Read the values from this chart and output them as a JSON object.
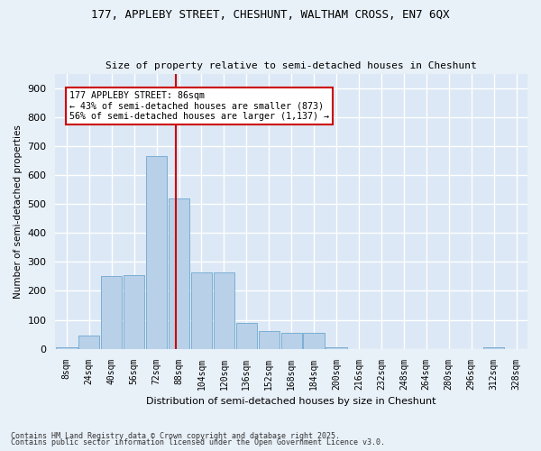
{
  "title1": "177, APPLEBY STREET, CHESHUNT, WALTHAM CROSS, EN7 6QX",
  "title2": "Size of property relative to semi-detached houses in Cheshunt",
  "xlabel": "Distribution of semi-detached houses by size in Cheshunt",
  "ylabel": "Number of semi-detached properties",
  "bins": [
    "8sqm",
    "24sqm",
    "40sqm",
    "56sqm",
    "72sqm",
    "88sqm",
    "104sqm",
    "120sqm",
    "136sqm",
    "152sqm",
    "168sqm",
    "184sqm",
    "200sqm",
    "216sqm",
    "232sqm",
    "248sqm",
    "264sqm",
    "280sqm",
    "296sqm",
    "312sqm",
    "328sqm"
  ],
  "bin_edges": [
    8,
    24,
    40,
    56,
    72,
    88,
    104,
    120,
    136,
    152,
    168,
    184,
    200,
    216,
    232,
    248,
    264,
    280,
    296,
    312,
    328
  ],
  "values": [
    5,
    45,
    250,
    255,
    665,
    520,
    265,
    265,
    90,
    60,
    55,
    55,
    5,
    0,
    0,
    0,
    0,
    0,
    0,
    5
  ],
  "bar_color": "#b8d0e8",
  "bar_edge_color": "#7bafd4",
  "vline_x": 86,
  "vline_color": "#cc0000",
  "annotation_title": "177 APPLEBY STREET: 86sqm",
  "annotation_line1": "← 43% of semi-detached houses are smaller (873)",
  "annotation_line2": "56% of semi-detached houses are larger (1,137) →",
  "annotation_box_color": "#ffffff",
  "annotation_box_edge": "#cc0000",
  "bg_color": "#e8f0f8",
  "plot_bg_color": "#dce8f5",
  "grid_color": "#ffffff",
  "footer1": "Contains HM Land Registry data © Crown copyright and database right 2025.",
  "footer2": "Contains public sector information licensed under the Open Government Licence v3.0.",
  "ylim": [
    0,
    950
  ],
  "yticks": [
    0,
    100,
    200,
    300,
    400,
    500,
    600,
    700,
    800,
    900
  ]
}
